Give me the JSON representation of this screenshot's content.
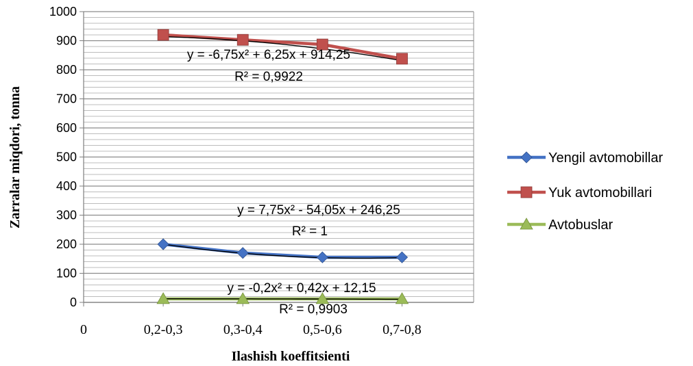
{
  "chart_data": {
    "type": "line",
    "xlabel": "Ilashish koeffitsienti",
    "ylabel": "Zarralar miqdori, tonna",
    "x_tick_labels": [
      "0",
      "0,2-0,3",
      "0,3-0,4",
      "0,5-0,6",
      "0,7-0,8"
    ],
    "categories": [
      "0,2-0,3",
      "0,3-0,4",
      "0,5-0,6",
      "0,7-0,8"
    ],
    "ylim": [
      0,
      1000
    ],
    "y_ticks": [
      0,
      100,
      200,
      300,
      400,
      500,
      600,
      700,
      800,
      900,
      1000
    ],
    "grid": true,
    "legend_position": "right",
    "series": [
      {
        "name": "Yengil avtomobillar",
        "color": "#4472C4",
        "marker": "diamond",
        "values": [
          200,
          170,
          155,
          155
        ]
      },
      {
        "name": "Yuk avtomobillari",
        "color": "#C0504D",
        "marker": "square",
        "values": [
          920,
          903,
          887,
          838
        ]
      },
      {
        "name": "Avtobuslar",
        "color": "#9BBB59",
        "marker": "triangle",
        "values": [
          12,
          12,
          12,
          12
        ]
      }
    ],
    "trendlines": [
      {
        "series": "Yuk avtomobillari",
        "equation": "y = -6,75x² + 6,25x + 914,25",
        "r2": "R² = 0,9922",
        "a": -6.75,
        "b": 6.25,
        "c": 914.25
      },
      {
        "series": "Yengil avtomobillar",
        "equation": "y = 7,75x² - 54,05x + 246,25",
        "r2": "R² = 1",
        "a": 7.75,
        "b": -54.05,
        "c": 246.25
      },
      {
        "series": "Avtobuslar",
        "equation": "y = -0,2x² + 0,42x + 12,15",
        "r2": "R² = 0,9903",
        "a": -0.2,
        "b": 0.42,
        "c": 12.15
      }
    ]
  }
}
